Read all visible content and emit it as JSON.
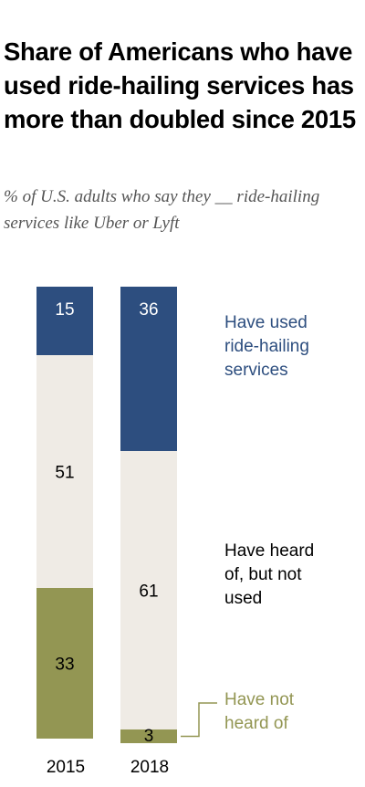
{
  "header": {
    "title": "Share of Americans who have used ride-hailing services has more than doubled since 2015",
    "subtitle": "% of U.S. adults who say they __ ride-hailing services like Uber or Lyft"
  },
  "chart_data": {
    "type": "bar",
    "stacked": true,
    "categories": [
      "2015",
      "2018"
    ],
    "series": [
      {
        "name": "Have used ride-hailing services",
        "values": [
          15,
          36
        ],
        "color": "#2d4e7f",
        "label_color": "#ffffff"
      },
      {
        "name": "Have heard of, but not used",
        "values": [
          51,
          61
        ],
        "color": "#efebe5",
        "label_color": "#000000"
      },
      {
        "name": "Have not heard of",
        "values": [
          33,
          3
        ],
        "color": "#939653",
        "label_color": "#000000"
      }
    ],
    "legend": {
      "placement": "right",
      "entries": [
        {
          "lines": [
            "Have used",
            "ride-hailing",
            "services"
          ],
          "color": "#2d4e7f"
        },
        {
          "lines": [
            "Have heard",
            "of, but not",
            "used"
          ],
          "color": "#000000"
        },
        {
          "lines": [
            "Have not",
            "heard of"
          ],
          "color": "#939653"
        }
      ]
    },
    "title": "Share of Americans who have used ride-hailing services has more than doubled since 2015",
    "subtitle": "% of U.S. adults who say they __ ride-hailing services like Uber or Lyft",
    "xlabel": "",
    "ylabel": "",
    "ylim": [
      0,
      100
    ],
    "grid": false
  }
}
